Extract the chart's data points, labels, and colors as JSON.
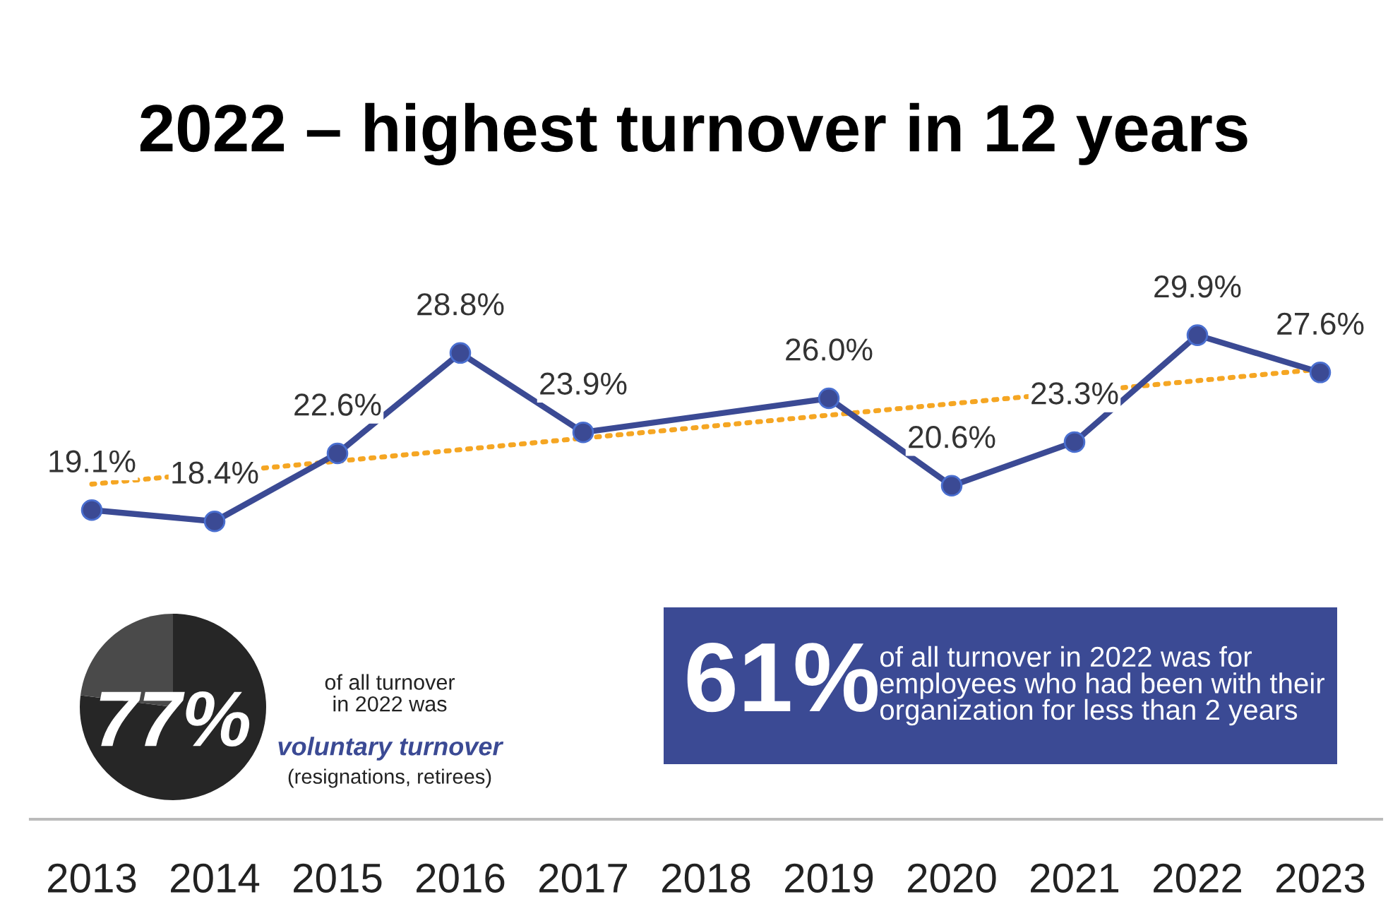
{
  "chart_data": [
    {
      "type": "line",
      "title": "2022 – highest turnover in 12 years",
      "x": [
        2013,
        2014,
        2015,
        2016,
        2017,
        2019,
        2020,
        2021,
        2022,
        2023
      ],
      "series": [
        {
          "color": "#3b4a94",
          "values": [
            19.1,
            18.4,
            22.6,
            28.8,
            23.9,
            26.0,
            20.6,
            23.3,
            29.9,
            27.6
          ],
          "value_labels": [
            "19.1%",
            "18.4%",
            "22.6%",
            "28.8%",
            "23.9%",
            "26.0%",
            "20.6%",
            "23.3%",
            "29.9%",
            "27.6%"
          ],
          "marker": "circle",
          "line_style": "solid"
        },
        {
          "type": "line",
          "color": "#f5a623",
          "x": [
            2013,
            2023
          ],
          "values": [
            20.7,
            27.8
          ],
          "line_style": "dotted",
          "marker": "none"
        }
      ],
      "xlim": [
        2012.5,
        2023.5
      ],
      "xticks": [
        2013,
        2014,
        2015,
        2016,
        2017,
        2018,
        2019,
        2020,
        2021,
        2022,
        2023
      ],
      "tick_labels": "x",
      "grid": false,
      "legend": false
    },
    {
      "type": "pie",
      "categories": [
        null,
        null
      ],
      "values": [
        77,
        23
      ],
      "colors": [
        "#262626",
        "#4a4a4a"
      ],
      "value_labels": [
        "77%",
        null
      ],
      "annotations": [
        "of all turnover\nin 2022 was",
        "voluntary turnover",
        "(resignations, retirees)"
      ]
    },
    {
      "type": "other",
      "title": "61%",
      "annotations": [
        "of all turnover in 2022 was for\nemployees who had been with their\norganization for less than 2 years"
      ]
    }
  ]
}
